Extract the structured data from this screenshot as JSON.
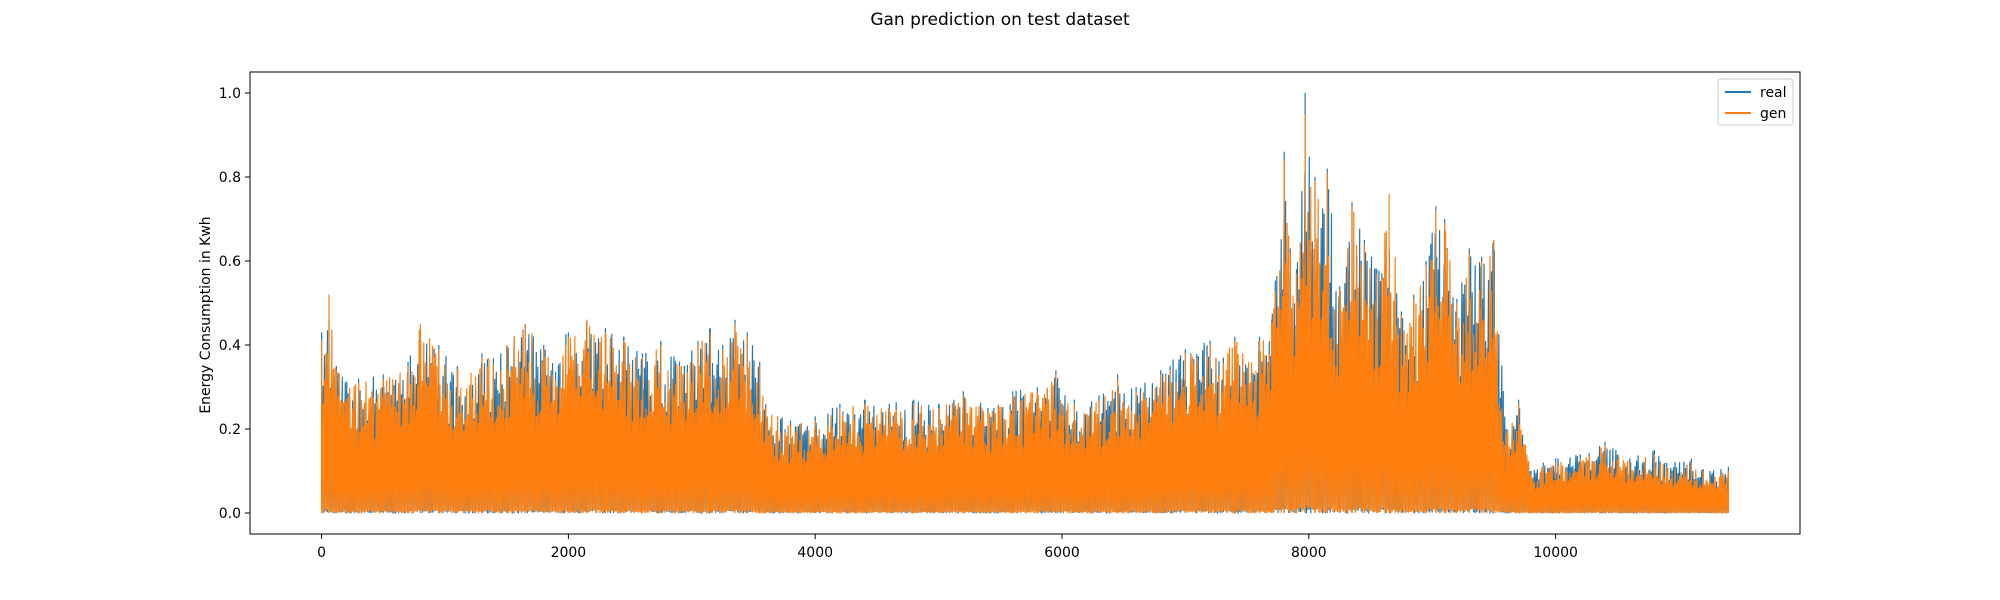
{
  "chart_data": {
    "type": "line",
    "title": "Gan prediction on test dataset",
    "xlabel": "",
    "ylabel": "Energy Consumption in Kwh",
    "xlim": [
      -580,
      11980
    ],
    "ylim": [
      -0.05,
      1.05
    ],
    "x_ticks": [
      0,
      2000,
      4000,
      6000,
      8000,
      10000
    ],
    "x_tick_labels": [
      "0",
      "2000",
      "4000",
      "6000",
      "8000",
      "10000"
    ],
    "y_ticks": [
      0.0,
      0.2,
      0.4,
      0.6,
      0.8,
      1.0
    ],
    "y_tick_labels": [
      "0.0",
      "0.2",
      "0.4",
      "0.6",
      "0.8",
      "1.0"
    ],
    "grid": false,
    "legend_position": "top-right",
    "n_points": 11400,
    "series": [
      {
        "name": "real",
        "color": "#1f77b4",
        "envelope": [
          [
            0,
            0.43
          ],
          [
            60,
            0.46
          ],
          [
            120,
            0.35
          ],
          [
            300,
            0.32
          ],
          [
            500,
            0.33
          ],
          [
            700,
            0.36
          ],
          [
            800,
            0.44
          ],
          [
            950,
            0.4
          ],
          [
            1100,
            0.35
          ],
          [
            1300,
            0.38
          ],
          [
            1500,
            0.4
          ],
          [
            1650,
            0.45
          ],
          [
            1800,
            0.4
          ],
          [
            2000,
            0.43
          ],
          [
            2150,
            0.46
          ],
          [
            2300,
            0.44
          ],
          [
            2450,
            0.42
          ],
          [
            2600,
            0.38
          ],
          [
            2750,
            0.41
          ],
          [
            2900,
            0.36
          ],
          [
            3050,
            0.41
          ],
          [
            3150,
            0.44
          ],
          [
            3250,
            0.4
          ],
          [
            3350,
            0.46
          ],
          [
            3450,
            0.43
          ],
          [
            3550,
            0.36
          ],
          [
            3600,
            0.26
          ],
          [
            3800,
            0.22
          ],
          [
            4000,
            0.23
          ],
          [
            4200,
            0.26
          ],
          [
            4400,
            0.27
          ],
          [
            4600,
            0.26
          ],
          [
            4800,
            0.27
          ],
          [
            5000,
            0.26
          ],
          [
            5200,
            0.29
          ],
          [
            5400,
            0.25
          ],
          [
            5600,
            0.29
          ],
          [
            5800,
            0.3
          ],
          [
            5950,
            0.34
          ],
          [
            6100,
            0.27
          ],
          [
            6300,
            0.28
          ],
          [
            6450,
            0.33
          ],
          [
            6600,
            0.3
          ],
          [
            6800,
            0.34
          ],
          [
            7000,
            0.39
          ],
          [
            7200,
            0.41
          ],
          [
            7400,
            0.42
          ],
          [
            7600,
            0.42
          ],
          [
            7700,
            0.46
          ],
          [
            7800,
            0.86
          ],
          [
            7850,
            0.63
          ],
          [
            7900,
            0.58
          ],
          [
            7970,
            1.0
          ],
          [
            8050,
            0.8
          ],
          [
            8150,
            0.82
          ],
          [
            8250,
            0.54
          ],
          [
            8350,
            0.74
          ],
          [
            8450,
            0.65
          ],
          [
            8550,
            0.58
          ],
          [
            8650,
            0.63
          ],
          [
            8750,
            0.48
          ],
          [
            8850,
            0.52
          ],
          [
            8950,
            0.6
          ],
          [
            9030,
            0.73
          ],
          [
            9100,
            0.7
          ],
          [
            9200,
            0.51
          ],
          [
            9300,
            0.63
          ],
          [
            9400,
            0.61
          ],
          [
            9500,
            0.65
          ],
          [
            9600,
            0.2
          ],
          [
            9700,
            0.27
          ],
          [
            9800,
            0.1
          ],
          [
            9900,
            0.12
          ],
          [
            10000,
            0.13
          ],
          [
            10200,
            0.14
          ],
          [
            10400,
            0.17
          ],
          [
            10600,
            0.13
          ],
          [
            10800,
            0.15
          ],
          [
            10900,
            0.12
          ],
          [
            11100,
            0.13
          ],
          [
            11250,
            0.1
          ],
          [
            11400,
            0.11
          ]
        ],
        "floor": 0.0
      },
      {
        "name": "gen",
        "color": "#ff7f0e",
        "envelope": [
          [
            0,
            0.41
          ],
          [
            60,
            0.52
          ],
          [
            120,
            0.34
          ],
          [
            300,
            0.31
          ],
          [
            500,
            0.32
          ],
          [
            700,
            0.35
          ],
          [
            800,
            0.45
          ],
          [
            950,
            0.39
          ],
          [
            1100,
            0.34
          ],
          [
            1300,
            0.37
          ],
          [
            1500,
            0.4
          ],
          [
            1650,
            0.45
          ],
          [
            1800,
            0.39
          ],
          [
            2000,
            0.42
          ],
          [
            2150,
            0.46
          ],
          [
            2300,
            0.43
          ],
          [
            2450,
            0.41
          ],
          [
            2600,
            0.37
          ],
          [
            2750,
            0.4
          ],
          [
            2900,
            0.35
          ],
          [
            3050,
            0.4
          ],
          [
            3150,
            0.43
          ],
          [
            3250,
            0.39
          ],
          [
            3350,
            0.45
          ],
          [
            3450,
            0.42
          ],
          [
            3550,
            0.35
          ],
          [
            3600,
            0.25
          ],
          [
            3800,
            0.21
          ],
          [
            4000,
            0.22
          ],
          [
            4200,
            0.25
          ],
          [
            4400,
            0.26
          ],
          [
            4600,
            0.25
          ],
          [
            4800,
            0.26
          ],
          [
            5000,
            0.25
          ],
          [
            5200,
            0.28
          ],
          [
            5400,
            0.24
          ],
          [
            5600,
            0.28
          ],
          [
            5800,
            0.29
          ],
          [
            5950,
            0.33
          ],
          [
            6100,
            0.26
          ],
          [
            6300,
            0.27
          ],
          [
            6450,
            0.32
          ],
          [
            6600,
            0.29
          ],
          [
            6800,
            0.33
          ],
          [
            7000,
            0.38
          ],
          [
            7200,
            0.4
          ],
          [
            7400,
            0.41
          ],
          [
            7600,
            0.41
          ],
          [
            7700,
            0.45
          ],
          [
            7800,
            0.84
          ],
          [
            7850,
            0.62
          ],
          [
            7900,
            0.57
          ],
          [
            7970,
            0.95
          ],
          [
            8050,
            0.79
          ],
          [
            8150,
            0.81
          ],
          [
            8250,
            0.53
          ],
          [
            8350,
            0.73
          ],
          [
            8450,
            0.64
          ],
          [
            8550,
            0.57
          ],
          [
            8650,
            0.76
          ],
          [
            8750,
            0.47
          ],
          [
            8850,
            0.51
          ],
          [
            8950,
            0.59
          ],
          [
            9030,
            0.72
          ],
          [
            9100,
            0.69
          ],
          [
            9200,
            0.5
          ],
          [
            9300,
            0.62
          ],
          [
            9400,
            0.6
          ],
          [
            9500,
            0.65
          ],
          [
            9600,
            0.19
          ],
          [
            9700,
            0.26
          ],
          [
            9800,
            0.09
          ],
          [
            9900,
            0.11
          ],
          [
            10000,
            0.12
          ],
          [
            10200,
            0.13
          ],
          [
            10400,
            0.16
          ],
          [
            10600,
            0.12
          ],
          [
            10800,
            0.14
          ],
          [
            10900,
            0.11
          ],
          [
            11100,
            0.12
          ],
          [
            11250,
            0.09
          ],
          [
            11400,
            0.1
          ]
        ],
        "floor": 0.0
      }
    ]
  }
}
